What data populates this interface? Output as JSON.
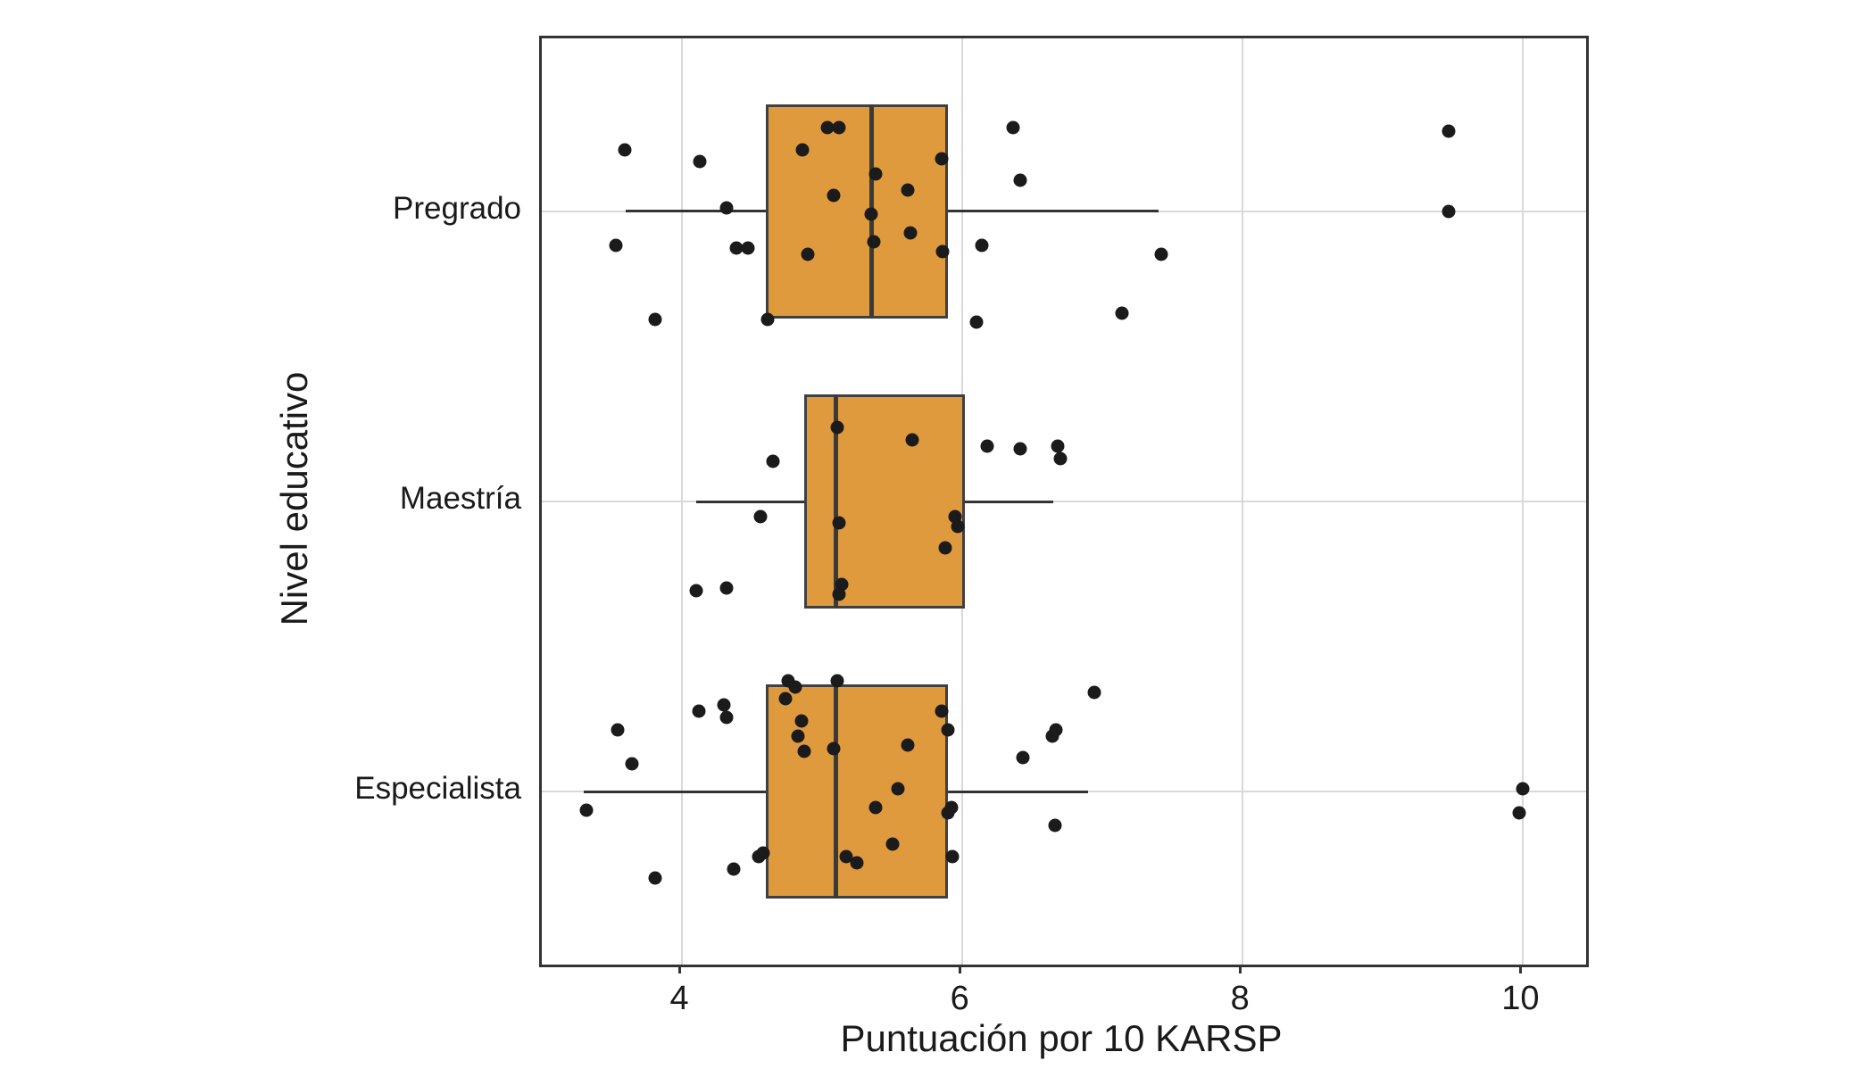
{
  "figure": {
    "background": "#ffffff"
  },
  "chart_data": {
    "type": "boxplot",
    "orientation": "horizontal",
    "title": "",
    "xlabel": "Puntuación por 10 KARSP",
    "ylabel": "Nivel educativo",
    "xlim": [
      3.0,
      10.45
    ],
    "x_ticks": [
      4,
      6,
      8,
      10
    ],
    "grid": true,
    "legend": "none",
    "colors": {
      "box_fill": "#DF9A3E",
      "box_stroke": "#404040",
      "median": "#3a3a3a",
      "whisker": "#333333",
      "point": "#1b1b1b",
      "gridline": "#d9d9d9",
      "panel_border": "#333333"
    },
    "categories": [
      "Pregrado",
      "Maestría",
      "Especialista"
    ],
    "boxes": [
      {
        "category": "Pregrado",
        "whisker_low": 3.6,
        "q1": 4.6,
        "median": 5.35,
        "q3": 5.9,
        "whisker_high": 7.4
      },
      {
        "category": "Maestría",
        "whisker_low": 4.1,
        "q1": 4.87,
        "median": 5.1,
        "q3": 6.02,
        "whisker_high": 6.65
      },
      {
        "category": "Especialista",
        "whisker_low": 3.3,
        "q1": 4.6,
        "median": 5.1,
        "q3": 5.9,
        "whisker_high": 6.9
      }
    ],
    "points": {
      "Pregrado": [
        [
          3.59,
          -0.2
        ],
        [
          3.53,
          0.11
        ],
        [
          3.81,
          0.35
        ],
        [
          4.13,
          -0.16
        ],
        [
          4.32,
          -0.01
        ],
        [
          4.39,
          0.12
        ],
        [
          4.47,
          0.12
        ],
        [
          4.61,
          0.35
        ],
        [
          4.86,
          -0.2
        ],
        [
          4.9,
          0.14
        ],
        [
          5.04,
          -0.27
        ],
        [
          5.12,
          -0.27
        ],
        [
          5.08,
          -0.05
        ],
        [
          5.35,
          0.01
        ],
        [
          5.37,
          0.1
        ],
        [
          5.38,
          -0.12
        ],
        [
          5.61,
          -0.07
        ],
        [
          5.63,
          0.07
        ],
        [
          5.85,
          -0.17
        ],
        [
          5.86,
          0.13
        ],
        [
          6.1,
          0.36
        ],
        [
          6.14,
          0.11
        ],
        [
          6.36,
          -0.27
        ],
        [
          6.41,
          -0.1
        ],
        [
          7.14,
          0.33
        ],
        [
          7.42,
          0.14
        ],
        [
          9.47,
          -0.26
        ],
        [
          9.47,
          0.0
        ]
      ],
      "Maestría": [
        [
          4.1,
          0.29
        ],
        [
          4.32,
          0.28
        ],
        [
          4.56,
          0.05
        ],
        [
          4.65,
          -0.13
        ],
        [
          5.11,
          -0.24
        ],
        [
          5.12,
          0.07
        ],
        [
          5.14,
          0.27
        ],
        [
          5.12,
          0.3
        ],
        [
          5.64,
          -0.2
        ],
        [
          5.88,
          0.15
        ],
        [
          5.95,
          0.05
        ],
        [
          5.97,
          0.08
        ],
        [
          6.18,
          -0.18
        ],
        [
          6.41,
          -0.17
        ],
        [
          6.68,
          -0.18
        ],
        [
          6.7,
          -0.14
        ]
      ],
      "Especialista": [
        [
          3.32,
          0.06
        ],
        [
          3.54,
          -0.2
        ],
        [
          3.64,
          -0.09
        ],
        [
          3.81,
          0.28
        ],
        [
          4.12,
          -0.26
        ],
        [
          4.3,
          -0.28
        ],
        [
          4.32,
          -0.24
        ],
        [
          4.37,
          0.25
        ],
        [
          4.55,
          0.21
        ],
        [
          4.58,
          0.2
        ],
        [
          4.74,
          -0.3
        ],
        [
          4.76,
          -0.36
        ],
        [
          4.81,
          -0.34
        ],
        [
          4.83,
          -0.18
        ],
        [
          4.85,
          -0.23
        ],
        [
          4.87,
          -0.13
        ],
        [
          5.08,
          -0.14
        ],
        [
          5.11,
          -0.36
        ],
        [
          5.17,
          0.21
        ],
        [
          5.25,
          0.23
        ],
        [
          5.38,
          0.05
        ],
        [
          5.5,
          0.17
        ],
        [
          5.54,
          -0.01
        ],
        [
          5.61,
          -0.15
        ],
        [
          5.85,
          -0.26
        ],
        [
          5.9,
          -0.2
        ],
        [
          5.9,
          0.07
        ],
        [
          5.92,
          0.05
        ],
        [
          5.93,
          0.21
        ],
        [
          6.43,
          -0.11
        ],
        [
          6.64,
          -0.18
        ],
        [
          6.66,
          0.11
        ],
        [
          6.67,
          -0.2
        ],
        [
          6.94,
          -0.32
        ],
        [
          9.97,
          0.07
        ],
        [
          10.0,
          -0.01
        ]
      ]
    }
  }
}
